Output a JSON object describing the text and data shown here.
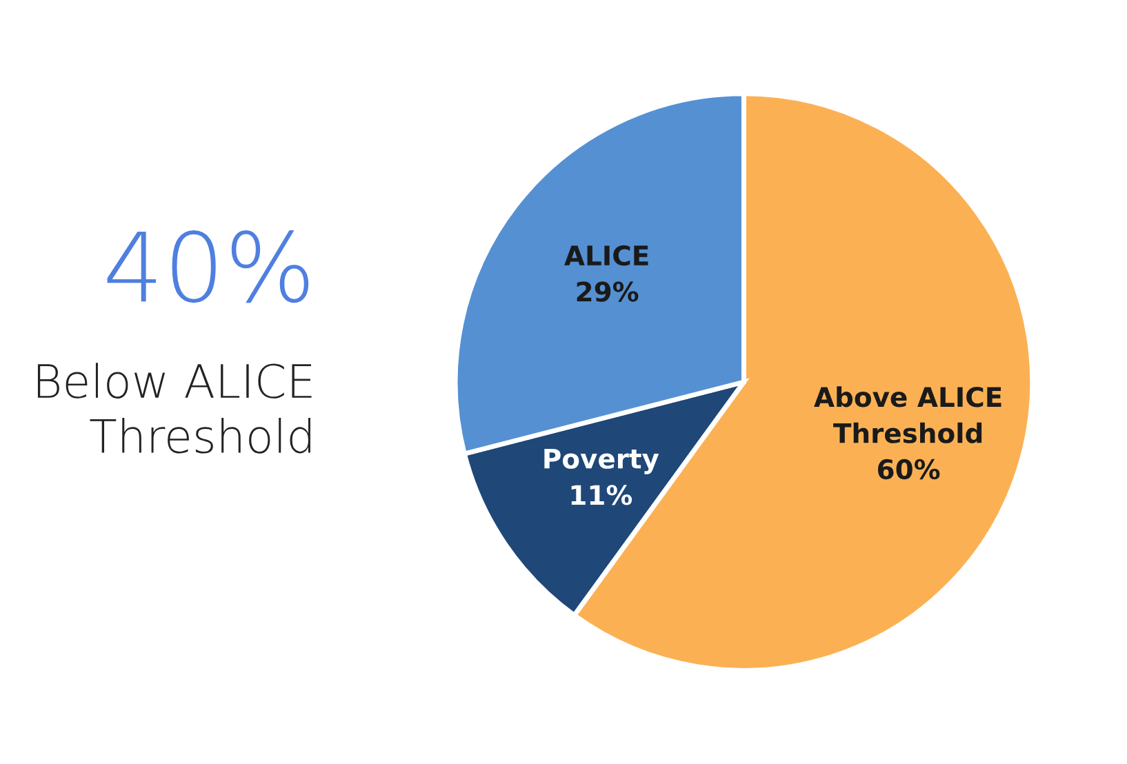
{
  "chart_data": {
    "type": "pie",
    "categories": [
      "Above ALICE\nThreshold",
      "Poverty",
      "ALICE"
    ],
    "values": [
      60,
      11,
      29
    ],
    "colors": [
      "#fbb153",
      "#1f4778",
      "#5590d3"
    ],
    "value_labels": [
      "60%",
      "11%",
      "29%"
    ],
    "annotations": [
      "40%",
      "Below ALICE\nThreshold"
    ],
    "legend": false
  }
}
